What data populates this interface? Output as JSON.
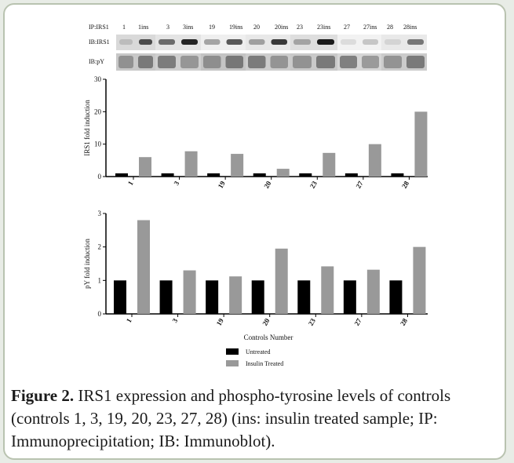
{
  "blot": {
    "ip_label": "IP:IRS1",
    "ib_irs1_label": "IB:IRS1",
    "ib_py_label": "IB:pY",
    "lanes": [
      "1",
      "1ins",
      "3",
      "3ins",
      "19",
      "19ins",
      "20",
      "20ins",
      "23",
      "23ins",
      "27",
      "27ins",
      "28",
      "28ins"
    ]
  },
  "legend": {
    "untreated": "Untreated",
    "insulin": "Insulin Treated"
  },
  "colors": {
    "untreated": "#000000",
    "insulin": "#999999",
    "frame_border": "#b9c3b0",
    "page_bg": "#e8ece6"
  },
  "caption": {
    "label": "Figure 2.",
    "text": " IRS1 expression and phospho-tyrosine levels of controls (controls 1, 3, 19, 20, 23, 27, 28) (ins: insulin treated sample; IP: Immunoprecipitation; IB: Immunoblot)."
  },
  "chart_data": [
    {
      "type": "bar",
      "categories": [
        "1",
        "3",
        "19",
        "20",
        "23",
        "27",
        "28"
      ],
      "series": [
        {
          "name": "Untreated",
          "values": [
            1,
            1,
            1,
            1,
            1,
            1,
            1
          ]
        },
        {
          "name": "Insulin Treated",
          "values": [
            6,
            7.8,
            7,
            2.4,
            7.3,
            10,
            20
          ]
        }
      ],
      "xlabel": "",
      "ylabel": "IRS1 fold induction",
      "ylim": [
        0,
        30
      ],
      "yticks": [
        "0",
        "10",
        "20",
        "30"
      ]
    },
    {
      "type": "bar",
      "categories": [
        "1",
        "3",
        "19",
        "20",
        "23",
        "27",
        "28"
      ],
      "series": [
        {
          "name": "Untreated",
          "values": [
            1,
            1,
            1,
            1,
            1,
            1,
            1
          ]
        },
        {
          "name": "Insulin Treated",
          "values": [
            2.8,
            1.3,
            1.12,
            1.95,
            1.42,
            1.32,
            2.0
          ]
        }
      ],
      "xlabel": "Controls Number",
      "ylabel": "pY fold induction",
      "ylim": [
        0,
        3
      ],
      "yticks": [
        "0",
        "1",
        "2",
        "3"
      ]
    }
  ]
}
